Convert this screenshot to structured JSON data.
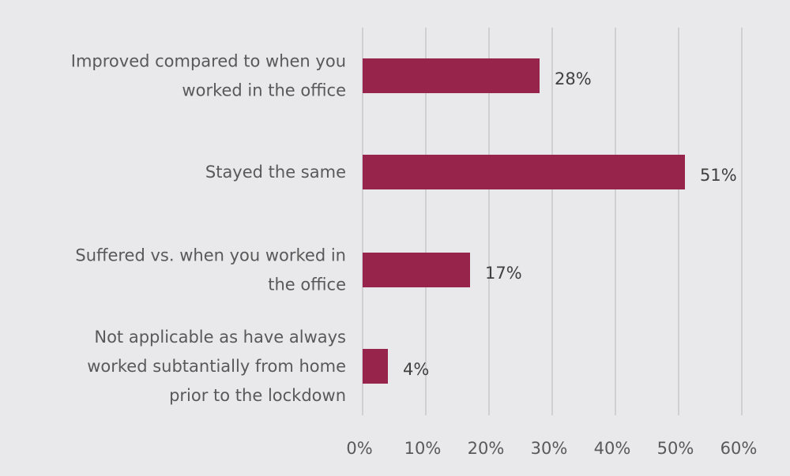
{
  "colors": {
    "background": "#e9e8ea",
    "bar": "#97244a",
    "gridline": "#d0cfd1",
    "label_text": "#595959",
    "value_text": "#404040"
  },
  "chart_data": {
    "type": "bar",
    "orientation": "horizontal",
    "title": "",
    "xlabel": "",
    "ylabel": "",
    "categories": [
      [
        "Improved compared to when you",
        "worked in the office"
      ],
      [
        "Stayed the same"
      ],
      [
        "Suffered vs. when you worked in",
        "the office"
      ],
      [
        "Not applicable as have always",
        "worked subtantially from home",
        "prior to the lockdown"
      ]
    ],
    "values": [
      28,
      51,
      17,
      4
    ],
    "data_labels": [
      "28%",
      "51%",
      "17%",
      "4%"
    ],
    "xlim": [
      0,
      60
    ],
    "xticks": [
      0,
      10,
      20,
      30,
      40,
      50,
      60
    ],
    "xtick_labels": [
      "0%",
      "10%",
      "20%",
      "30%",
      "40%",
      "50%",
      "60%"
    ],
    "grid": "vertical",
    "legend": "none"
  }
}
